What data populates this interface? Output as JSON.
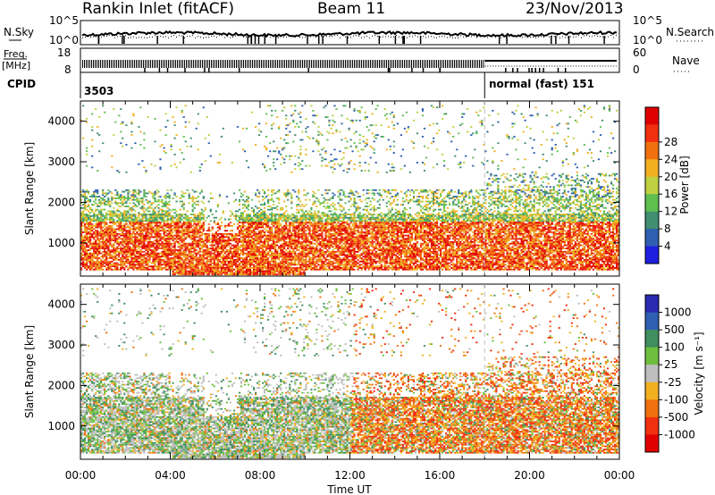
{
  "header": {
    "station": "Rankin Inlet (fitACF)",
    "beam": "Beam 11",
    "date": "23/Nov/2013"
  },
  "strip": {
    "nsky_label": "N.Sky",
    "nsky_ticks": [
      "10^5",
      "10^0"
    ],
    "nsearch_label": "N.Search",
    "nsearch_ticks": [
      "10^5",
      "10^0"
    ],
    "freq_label_1": "Freq.",
    "freq_label_2": "[MHz]",
    "freq_ticks": [
      "18",
      "8"
    ],
    "nave_label": "Nave",
    "nave_ticks": [
      "60",
      "0"
    ],
    "cpid_label": "CPID",
    "cpid_1": "3503",
    "cpid_2": "normal (fast) 151",
    "cpid_change_hour": 18.0
  },
  "colors": {
    "power": [
      "#1f1fe0",
      "#2f5fb0",
      "#3f8f70",
      "#5fbf4f",
      "#bfd040",
      "#f0b020",
      "#f07010",
      "#f03010",
      "#e00000"
    ],
    "velocity": [
      "#2a2ab0",
      "#2f5fb0",
      "#3f8f5f",
      "#6fbf3f",
      "#bebebe",
      "#f0b020",
      "#f07010",
      "#f03010",
      "#e00000"
    ]
  },
  "chart_data": [
    {
      "type": "heatmap",
      "name": "power",
      "ylabel": "Slant Range [km]",
      "ylim": [
        180,
        4500
      ],
      "yticks": [
        1000,
        2000,
        3000,
        4000
      ],
      "xlim": [
        0,
        24
      ],
      "colorbar_label": "Power [dB]",
      "colorbar_ticks": [
        "4",
        "8",
        "12",
        "16",
        "20",
        "24",
        "28"
      ],
      "colorbar_range": [
        0,
        30
      ]
    },
    {
      "type": "heatmap",
      "name": "velocity",
      "ylabel": "Slant Range [km]",
      "ylim": [
        180,
        4500
      ],
      "yticks": [
        1000,
        2000,
        3000,
        4000
      ],
      "xlim": [
        0,
        24
      ],
      "colorbar_label": "Velocity [m s⁻¹]",
      "colorbar_ticks": [
        "1000",
        "500",
        "100",
        "25",
        "-25",
        "-100",
        "-500",
        "-1000"
      ]
    }
  ],
  "xaxis": {
    "label": "Time UT",
    "ticks": [
      "00:00",
      "04:00",
      "08:00",
      "12:00",
      "16:00",
      "20:00",
      "00:00"
    ],
    "tick_hours": [
      0,
      4,
      8,
      12,
      16,
      20,
      24
    ]
  }
}
